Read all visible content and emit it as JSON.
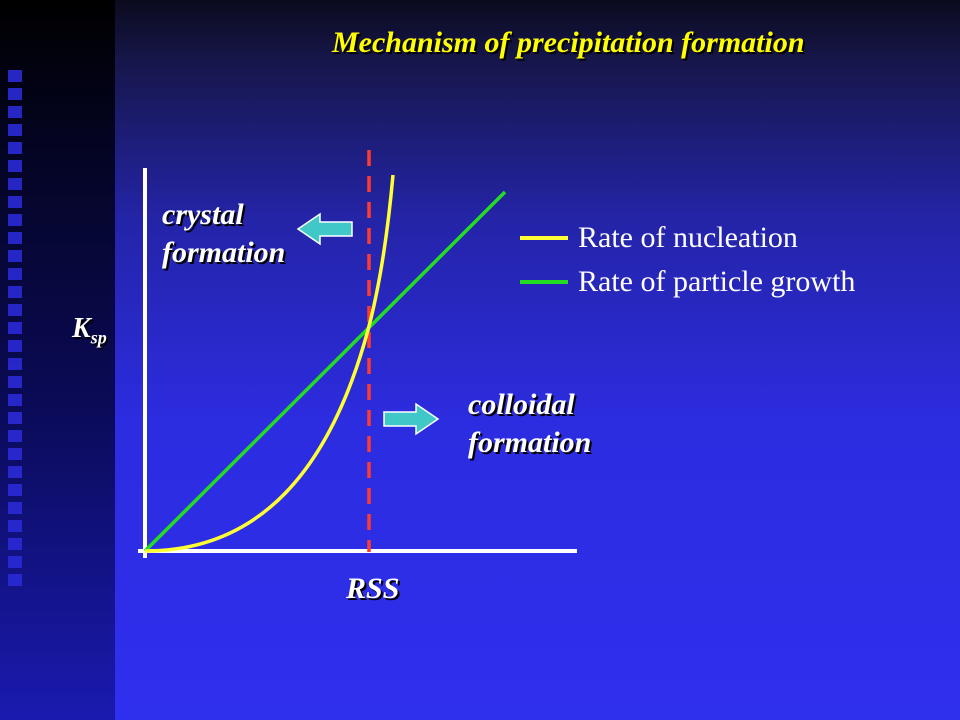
{
  "slide": {
    "title": "Mechanism of precipitation formation"
  },
  "annotations": {
    "crystal_line1": "crystal",
    "crystal_line2": "formation",
    "colloidal_line1": "colloidal",
    "colloidal_line2": "formation",
    "ksp_main": "K",
    "ksp_sub": "sp",
    "rss": "RSS"
  },
  "colors": {
    "nucleation": "#ffff33",
    "growth": "#22dd22",
    "rss_line": "#ff3b2f",
    "axes": "#ffffff",
    "arrow": "#40c8c8"
  },
  "chart_data": {
    "type": "line",
    "title": "Mechanism of precipitation formation",
    "xlabel": "RSS",
    "ylabel": "Ksp",
    "series": [
      {
        "name": "Rate of nucleation",
        "color": "#ffff33",
        "shape": "exponential",
        "points": [
          [
            0,
            0
          ],
          [
            0.2,
            0.02
          ],
          [
            0.4,
            0.07
          ],
          [
            0.6,
            0.18
          ],
          [
            0.8,
            0.38
          ],
          [
            1.0,
            0.58
          ],
          [
            1.05,
            0.7
          ],
          [
            1.1,
            0.86
          ],
          [
            1.12,
            1.0
          ]
        ]
      },
      {
        "name": "Rate of particle growth",
        "color": "#22dd22",
        "shape": "linear",
        "points": [
          [
            0,
            0
          ],
          [
            1.6,
            0.94
          ]
        ]
      }
    ],
    "vertical_marker": {
      "x": 1.0,
      "label": "RSS",
      "style": "dashed"
    },
    "legend": "right"
  }
}
